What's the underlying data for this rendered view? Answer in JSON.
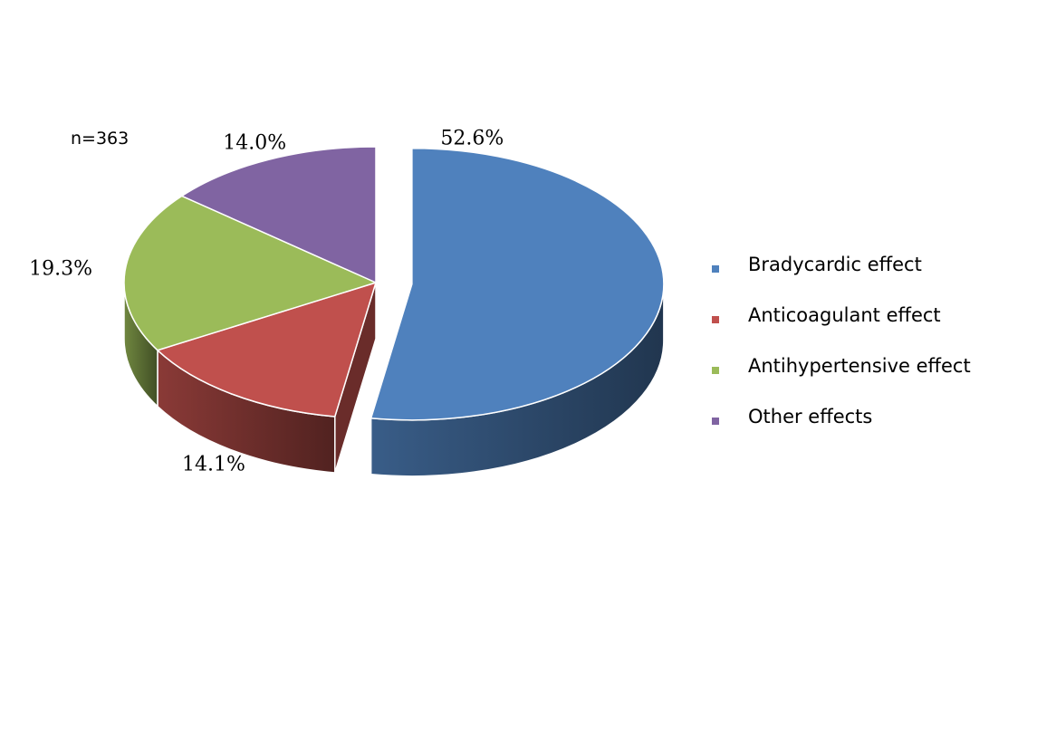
{
  "chart_data": {
    "type": "pie",
    "annotation": "n=363",
    "slices": [
      {
        "label": "Bradycardic effect",
        "value": 52.6,
        "display": "52.6%",
        "color": "#4F81BD",
        "explode": true
      },
      {
        "label": "Anticoagulant effect",
        "value": 14.1,
        "display": "14.1%",
        "color": "#C0504D",
        "explode": false
      },
      {
        "label": "Antihypertensive effect",
        "value": 19.3,
        "display": "19.3%",
        "color": "#9BBB59",
        "explode": false
      },
      {
        "label": "Other effects",
        "value": 14.0,
        "display": "14.0%",
        "color": "#8064A2",
        "explode": false
      }
    ],
    "legend_position": "right",
    "three_d": true
  }
}
